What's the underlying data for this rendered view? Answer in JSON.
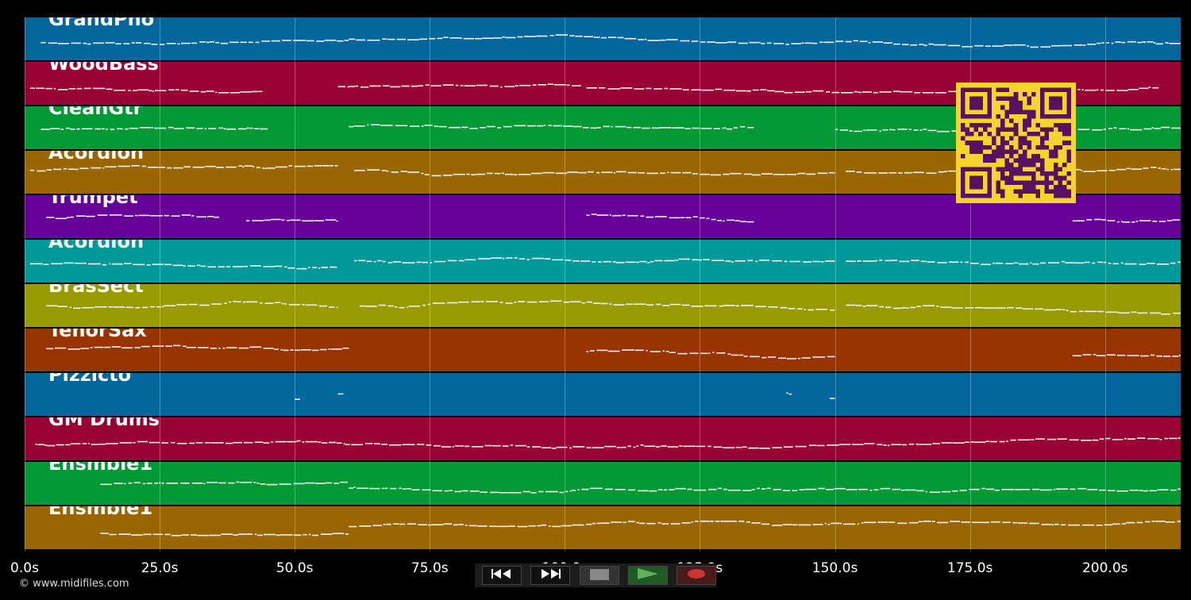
{
  "tracks": [
    {
      "name": "GrandPno",
      "color": "#03669c"
    },
    {
      "name": "WoodBass",
      "color": "#990033"
    },
    {
      "name": "CleanGtr",
      "color": "#009933"
    },
    {
      "name": "Acordion",
      "color": "#996600"
    },
    {
      "name": "Trumpet",
      "color": "#660099"
    },
    {
      "name": "Acordion",
      "color": "#009999"
    },
    {
      "name": "BrasSect",
      "color": "#999900"
    },
    {
      "name": "TenorSax",
      "color": "#993300"
    },
    {
      "name": "Pizzicto",
      "color": "#03669c"
    },
    {
      "name": "GM Drums",
      "color": "#990033"
    },
    {
      "name": "Ensmble1",
      "color": "#009933"
    },
    {
      "name": "Ensmble1",
      "color": "#996600"
    }
  ],
  "time_axis": {
    "unit": "s",
    "max_seconds": 214,
    "ticks": [
      "0.0s",
      "25.0s",
      "50.0s",
      "75.0s",
      "100.0s",
      "125.0s",
      "150.0s",
      "175.0s",
      "200.0s"
    ],
    "tick_values": [
      0,
      25,
      50,
      75,
      100,
      125,
      150,
      175,
      200
    ]
  },
  "transport": {
    "rewind": {
      "icon": "rewind-icon",
      "color": "#ffffff"
    },
    "fast_forward": {
      "icon": "fast-forward-icon",
      "color": "#ffffff"
    },
    "stop": {
      "icon": "stop-icon",
      "color": "#888888"
    },
    "play": {
      "icon": "play-icon",
      "color": "#5fb35f"
    },
    "record": {
      "icon": "record-icon",
      "color": "#cc3333"
    }
  },
  "qr_code": {
    "icon": "qr-code-icon",
    "fg": "#5a1060",
    "bg": "#f5d52b"
  },
  "copyright": "© www.midifiles.com"
}
